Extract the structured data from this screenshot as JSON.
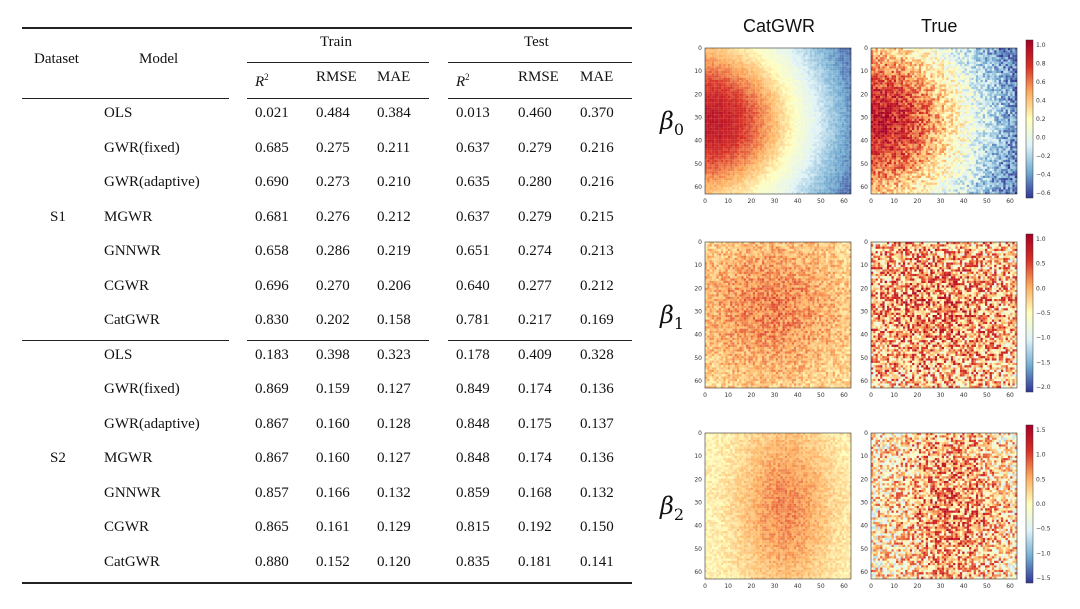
{
  "table": {
    "headers": {
      "dataset": "Dataset",
      "model": "Model",
      "train": "Train",
      "test": "Test",
      "r2": "R",
      "r2_sup": "2",
      "rmse": "RMSE",
      "mae": "MAE"
    },
    "groups": [
      {
        "name": "S1",
        "rows": [
          {
            "model": "OLS",
            "train": [
              "0.021",
              "0.484",
              "0.384"
            ],
            "test": [
              "0.013",
              "0.460",
              "0.370"
            ]
          },
          {
            "model": "GWR(fixed)",
            "train": [
              "0.685",
              "0.275",
              "0.211"
            ],
            "test": [
              "0.637",
              "0.279",
              "0.216"
            ]
          },
          {
            "model": "GWR(adaptive)",
            "train": [
              "0.690",
              "0.273",
              "0.210"
            ],
            "test": [
              "0.635",
              "0.280",
              "0.216"
            ]
          },
          {
            "model": "MGWR",
            "train": [
              "0.681",
              "0.276",
              "0.212"
            ],
            "test": [
              "0.637",
              "0.279",
              "0.215"
            ]
          },
          {
            "model": "GNNWR",
            "train": [
              "0.658",
              "0.286",
              "0.219"
            ],
            "test": [
              "0.651",
              "0.274",
              "0.213"
            ]
          },
          {
            "model": "CGWR",
            "train": [
              "0.696",
              "0.270",
              "0.206"
            ],
            "test": [
              "0.640",
              "0.277",
              "0.212"
            ]
          },
          {
            "model": "CatGWR",
            "train": [
              "0.830",
              "0.202",
              "0.158"
            ],
            "test": [
              "0.781",
              "0.217",
              "0.169"
            ]
          }
        ]
      },
      {
        "name": "S2",
        "rows": [
          {
            "model": "OLS",
            "train": [
              "0.183",
              "0.398",
              "0.323"
            ],
            "test": [
              "0.178",
              "0.409",
              "0.328"
            ]
          },
          {
            "model": "GWR(fixed)",
            "train": [
              "0.869",
              "0.159",
              "0.127"
            ],
            "test": [
              "0.849",
              "0.174",
              "0.136"
            ]
          },
          {
            "model": "GWR(adaptive)",
            "train": [
              "0.867",
              "0.160",
              "0.128"
            ],
            "test": [
              "0.848",
              "0.175",
              "0.137"
            ]
          },
          {
            "model": "MGWR",
            "train": [
              "0.867",
              "0.160",
              "0.127"
            ],
            "test": [
              "0.848",
              "0.174",
              "0.136"
            ]
          },
          {
            "model": "GNNWR",
            "train": [
              "0.857",
              "0.166",
              "0.132"
            ],
            "test": [
              "0.859",
              "0.168",
              "0.132"
            ]
          },
          {
            "model": "CGWR",
            "train": [
              "0.865",
              "0.161",
              "0.129"
            ],
            "test": [
              "0.815",
              "0.192",
              "0.150"
            ]
          },
          {
            "model": "CatGWR",
            "train": [
              "0.880",
              "0.152",
              "0.120"
            ],
            "test": [
              "0.835",
              "0.181",
              "0.141"
            ]
          }
        ]
      }
    ]
  },
  "figure": {
    "columns": [
      "CatGWR",
      "True"
    ],
    "axis_ticks": [
      "0",
      "10",
      "20",
      "30",
      "40",
      "50",
      "60"
    ],
    "colormap": [
      "#313695",
      "#74add1",
      "#e0f3f8",
      "#ffffbf",
      "#fdae61",
      "#d73027",
      "#a50026"
    ],
    "rows": [
      {
        "symbol": "β",
        "sub": "0",
        "colorbar_ticks": [
          "1.0",
          "0.8",
          "0.6",
          "0.4",
          "0.2",
          "0.0",
          "−0.2",
          "−0.4",
          "−0.6"
        ],
        "vmin": -0.6,
        "vmax": 1.05
      },
      {
        "symbol": "β",
        "sub": "1",
        "colorbar_ticks": [
          "1.0",
          "0.5",
          "0.0",
          "−0.5",
          "−1.0",
          "−1.5",
          "−2.0"
        ],
        "vmin": -2.0,
        "vmax": 1.35
      },
      {
        "symbol": "β",
        "sub": "2",
        "colorbar_ticks": [
          "1.5",
          "1.0",
          "0.5",
          "0.0",
          "−0.5",
          "−1.0",
          "−1.5"
        ],
        "vmin": -1.8,
        "vmax": 1.6
      }
    ]
  }
}
